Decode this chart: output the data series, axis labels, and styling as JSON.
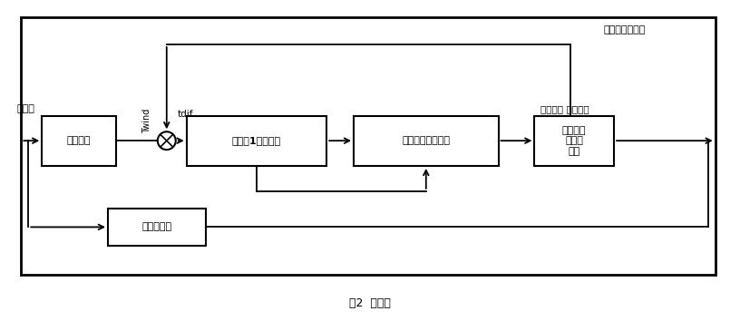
{
  "fig_width": 8.16,
  "fig_height": 3.54,
  "dpi": 100,
  "background_color": "#ffffff",
  "caption": "图2  轴模型",
  "label_turbine_speed": "涡轮机的角速度",
  "label_wind_power": "风功率",
  "label_Twind": "Twind",
  "label_tdif": "tdif",
  "label_mech_torque": "机械转矩 输出功率",
  "block_torque": "转矩模块",
  "block_mass1": "质能块1转矩模块",
  "block_damping": "质能块的阻尼系数",
  "block_turbine": "涡轮机基\n准额定\n功率",
  "block_gearbox": "齿轮箱模块"
}
